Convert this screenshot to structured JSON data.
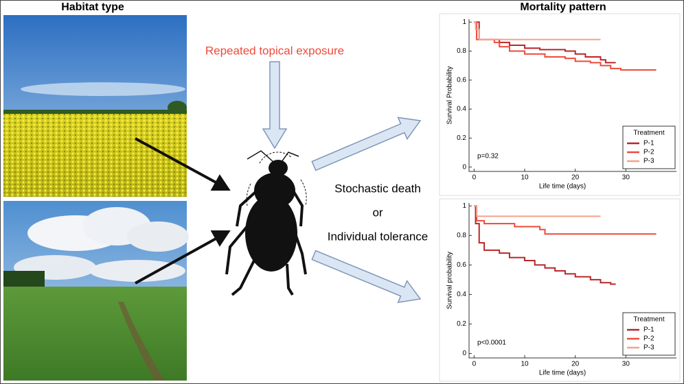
{
  "labels": {
    "habitat_title": "Habitat type",
    "mortality_title": "Mortality pattern",
    "exposure": "Repeated topical exposure",
    "outcome_1": "Stochastic death",
    "outcome_or": "or",
    "outcome_2": "Individual tolerance"
  },
  "chart_data": [
    {
      "type": "line",
      "ylabel": "Survival Probability",
      "xlabel": "Life time (days)",
      "annotation": "p=0.32",
      "legend_title": "Treatment",
      "legend": "lower right",
      "xlim": [
        -1,
        40
      ],
      "xticks": [
        0,
        10,
        20,
        30
      ],
      "ylim": [
        -0.03,
        1.02
      ],
      "yticks": [
        0,
        0.2,
        0.4,
        0.6,
        0.8,
        1
      ],
      "series": [
        {
          "name": "P-1",
          "color": "#b8262a",
          "x": [
            0,
            1,
            1,
            5,
            5,
            7,
            7,
            10,
            10,
            13,
            13,
            18,
            18,
            20,
            20,
            22,
            22,
            25,
            25,
            26,
            26,
            28
          ],
          "values": [
            1,
            1,
            0.88,
            0.88,
            0.86,
            0.86,
            0.84,
            0.84,
            0.82,
            0.82,
            0.81,
            0.81,
            0.8,
            0.8,
            0.78,
            0.78,
            0.76,
            0.76,
            0.74,
            0.74,
            0.72,
            0.72
          ]
        },
        {
          "name": "P-2",
          "color": "#ee4a3a",
          "x": [
            0,
            0.5,
            0.5,
            4,
            4,
            5,
            5,
            7,
            7,
            10,
            10,
            14,
            14,
            18,
            18,
            20,
            20,
            23,
            23,
            25,
            25,
            27,
            27,
            29,
            29,
            36
          ],
          "values": [
            1,
            1,
            0.88,
            0.88,
            0.86,
            0.86,
            0.83,
            0.83,
            0.8,
            0.8,
            0.78,
            0.78,
            0.76,
            0.76,
            0.75,
            0.75,
            0.73,
            0.73,
            0.72,
            0.72,
            0.7,
            0.7,
            0.68,
            0.68,
            0.67,
            0.67
          ]
        },
        {
          "name": "P-3",
          "color": "#f5a08a",
          "x": [
            0,
            0.3,
            0.3,
            1,
            1,
            25
          ],
          "values": [
            1,
            1,
            0.95,
            0.95,
            0.88,
            0.88
          ]
        }
      ]
    },
    {
      "type": "line",
      "ylabel": "Survival probability",
      "xlabel": "Life time (days)",
      "annotation": "p<0.0001",
      "legend_title": "Treatment",
      "legend": "lower right",
      "xlim": [
        -1,
        40
      ],
      "xticks": [
        0,
        10,
        20,
        30
      ],
      "ylim": [
        -0.03,
        1.02
      ],
      "yticks": [
        0,
        0.2,
        0.4,
        0.6,
        0.8,
        1
      ],
      "series": [
        {
          "name": "P-1",
          "color": "#b8262a",
          "x": [
            0,
            0.3,
            0.3,
            1,
            1,
            2,
            2,
            5,
            5,
            7,
            7,
            10,
            10,
            12,
            12,
            14,
            14,
            16,
            16,
            18,
            18,
            20,
            20,
            23,
            23,
            25,
            25,
            27,
            27,
            28
          ],
          "values": [
            1,
            1,
            0.88,
            0.88,
            0.75,
            0.75,
            0.7,
            0.7,
            0.68,
            0.68,
            0.65,
            0.65,
            0.63,
            0.63,
            0.6,
            0.6,
            0.58,
            0.58,
            0.56,
            0.56,
            0.54,
            0.54,
            0.52,
            0.52,
            0.5,
            0.5,
            0.48,
            0.48,
            0.47,
            0.47
          ]
        },
        {
          "name": "P-2",
          "color": "#ee4a3a",
          "x": [
            0,
            0.5,
            0.5,
            2,
            2,
            8,
            8,
            13,
            13,
            14,
            14,
            36
          ],
          "values": [
            1,
            1,
            0.9,
            0.9,
            0.88,
            0.88,
            0.86,
            0.86,
            0.84,
            0.84,
            0.81,
            0.81
          ]
        },
        {
          "name": "P-3",
          "color": "#f5a08a",
          "x": [
            0,
            0.5,
            0.5,
            25
          ],
          "values": [
            1,
            1,
            0.93,
            0.93
          ]
        }
      ]
    }
  ]
}
